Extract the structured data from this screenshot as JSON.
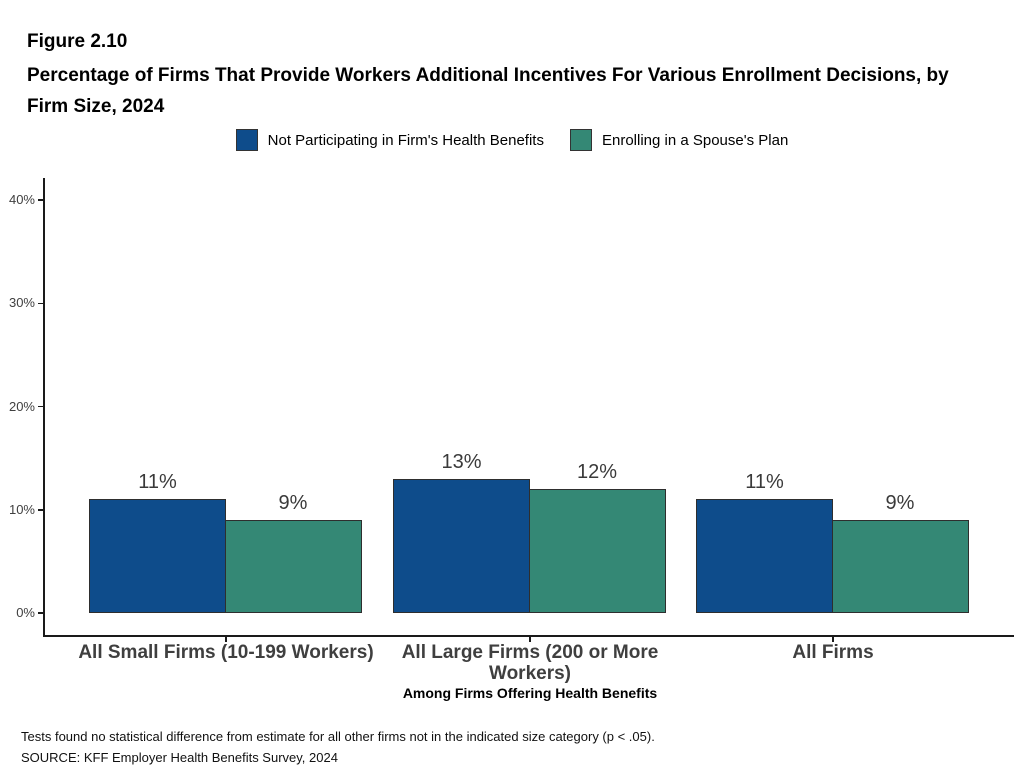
{
  "header": {
    "figure_label": "Figure 2.10",
    "title": "Percentage of Firms That Provide Workers Additional Incentives For Various Enrollment Decisions, by Firm Size, 2024"
  },
  "legend": {
    "items": [
      {
        "label": "Not Participating in Firm's Health Benefits",
        "color": "#0E4C8B"
      },
      {
        "label": "Enrolling in a Spouse's Plan",
        "color": "#348875"
      }
    ]
  },
  "chart_data": {
    "type": "bar",
    "title": "Percentage of Firms That Provide Workers Additional Incentives For Various Enrollment Decisions, by Firm Size, 2024",
    "categories": [
      "All Small Firms (10-199 Workers)",
      "All Large Firms (200 or More Workers)",
      "All Firms"
    ],
    "series": [
      {
        "name": "Not Participating in Firm's Health Benefits",
        "color": "#0E4C8B",
        "values": [
          11,
          13,
          11
        ],
        "labels": [
          "11%",
          "13%",
          "11%"
        ]
      },
      {
        "name": "Enrolling in a Spouse's Plan",
        "color": "#348875",
        "values": [
          9,
          12,
          9
        ],
        "labels": [
          "9%",
          "12%",
          "9%"
        ]
      }
    ],
    "xlabel": "Among Firms Offering Health Benefits",
    "ylabel": "",
    "y_ticks": [
      {
        "value": 0,
        "label": "0%"
      },
      {
        "value": 10,
        "label": "10%"
      },
      {
        "value": 20,
        "label": "20%"
      },
      {
        "value": 30,
        "label": "30%"
      },
      {
        "value": 40,
        "label": "40%"
      }
    ],
    "ylim": [
      0,
      42
    ],
    "grid": false,
    "legend_position": "top",
    "bar_border_color": "#2E2E2E",
    "axis_color": "#1A1A1A"
  },
  "footnotes": {
    "note": "Tests found no statistical difference from estimate for all other firms not in the indicated size category (p < .05).",
    "source": "SOURCE: KFF Employer Health Benefits Survey, 2024"
  }
}
